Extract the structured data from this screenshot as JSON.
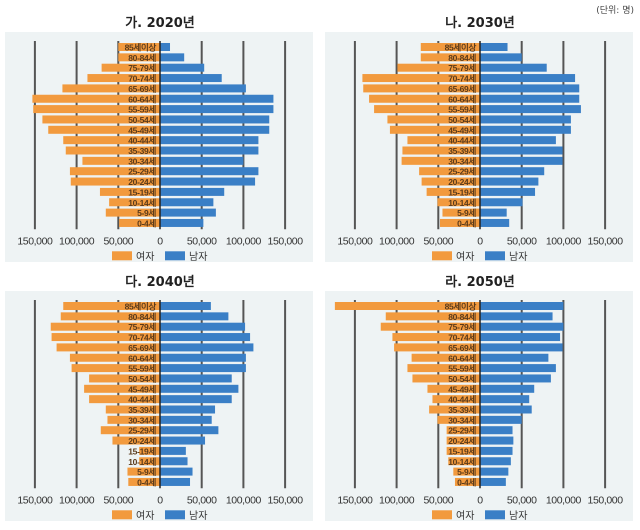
{
  "unit_label": "(단위: 명)",
  "colors": {
    "female": "#f29a3e",
    "male": "#3a7fc6",
    "panel_bg": "#eef3f4",
    "grid": "#555555"
  },
  "legend": {
    "female": "여자",
    "male": "남자"
  },
  "chart_data": [
    {
      "type": "bar",
      "orientation": "population-pyramid",
      "title": "가. 2020년",
      "categories": [
        "85세이상",
        "80-84세",
        "75-79세",
        "70-74세",
        "65-69세",
        "60-64세",
        "55-59세",
        "50-54세",
        "45-49세",
        "40-44세",
        "35-39세",
        "30-34세",
        "25-29세",
        "20-24세",
        "15-19세",
        "10-14세",
        "5-9세",
        "0-4세"
      ],
      "series": [
        {
          "name": "여자",
          "values": [
            50000,
            50000,
            70000,
            87000,
            117000,
            153000,
            152000,
            141000,
            134000,
            116000,
            113000,
            93000,
            108000,
            107000,
            72000,
            61000,
            65000,
            49000
          ]
        },
        {
          "name": "남자",
          "values": [
            12000,
            29000,
            53000,
            74000,
            103000,
            136000,
            136000,
            131000,
            131000,
            118000,
            118000,
            100000,
            118000,
            114000,
            77000,
            64000,
            67000,
            52000
          ]
        }
      ],
      "xticks": [
        "150,000",
        "100,000",
        "50,000",
        "0",
        "50,000",
        "100,000",
        "150,000"
      ],
      "xlim": [
        -150000,
        150000
      ],
      "grid": true,
      "legend_position": "bottom"
    },
    {
      "type": "bar",
      "orientation": "population-pyramid",
      "title": "나. 2030년",
      "categories": [
        "85세이상",
        "80-84세",
        "75-79세",
        "70-74세",
        "65-69세",
        "60-64세",
        "55-59세",
        "50-54세",
        "45-49세",
        "40-44세",
        "35-39세",
        "30-34세",
        "25-29세",
        "20-24세",
        "15-19세",
        "10-14세",
        "5-9세",
        "0-4세"
      ],
      "series": [
        {
          "name": "여자",
          "values": [
            71000,
            71000,
            99000,
            141000,
            140000,
            133000,
            127000,
            111000,
            108000,
            87000,
            93000,
            94000,
            73000,
            70000,
            64000,
            51000,
            45000,
            48000
          ]
        },
        {
          "name": "남자",
          "values": [
            33000,
            50000,
            80000,
            114000,
            119000,
            119000,
            121000,
            109000,
            109000,
            91000,
            99000,
            99000,
            77000,
            70000,
            66000,
            51000,
            32000,
            35000
          ]
        }
      ],
      "xticks": [
        "150,000",
        "100,000",
        "50,000",
        "0",
        "50,000",
        "100,000",
        "150,000"
      ],
      "xlim": [
        -150000,
        150000
      ],
      "grid": true,
      "legend_position": "bottom"
    },
    {
      "type": "bar",
      "orientation": "population-pyramid",
      "title": "다. 2040년",
      "categories": [
        "85세이상",
        "80-84세",
        "75-79세",
        "70-74세",
        "65-69세",
        "60-64세",
        "55-59세",
        "50-54세",
        "45-49세",
        "40-44세",
        "35-39세",
        "30-34세",
        "25-29세",
        "20-24세",
        "15-19세",
        "10-14세",
        "5-9세",
        "0-4세"
      ],
      "series": [
        {
          "name": "여자",
          "values": [
            116000,
            119000,
            131000,
            130000,
            124000,
            108000,
            106000,
            85000,
            91000,
            85000,
            65000,
            63000,
            71000,
            57000,
            25000,
            25000,
            39000,
            38000
          ]
        },
        {
          "name": "남자",
          "values": [
            61000,
            82000,
            102000,
            108000,
            112000,
            103000,
            103000,
            86000,
            94000,
            86000,
            66000,
            62000,
            70000,
            54000,
            31000,
            33000,
            39000,
            36000
          ]
        }
      ],
      "xticks": [
        "150,000",
        "100,000",
        "50,000",
        "0",
        "50,000",
        "100,000",
        "150,000"
      ],
      "xlim": [
        -150000,
        150000
      ],
      "grid": true,
      "legend_position": "bottom"
    },
    {
      "type": "bar",
      "orientation": "population-pyramid",
      "title": "라. 2050년",
      "categories": [
        "85세이상",
        "80-84세",
        "75-79세",
        "70-74세",
        "65-69세",
        "60-64세",
        "55-59세",
        "50-54세",
        "45-49세",
        "40-44세",
        "35-39세",
        "30-34세",
        "25-29세",
        "20-24세",
        "15-19세",
        "10-14세",
        "5-9세",
        "0-4세"
      ],
      "series": [
        {
          "name": "여자",
          "values": [
            174000,
            113000,
            119000,
            105000,
            103000,
            82000,
            87000,
            81000,
            63000,
            57000,
            61000,
            51000,
            40000,
            40000,
            40000,
            38000,
            32000,
            30000
          ]
        },
        {
          "name": "남자",
          "values": [
            100000,
            87000,
            100000,
            96000,
            99000,
            82000,
            91000,
            85000,
            65000,
            59000,
            62000,
            50000,
            39000,
            40000,
            39000,
            37000,
            34000,
            31000
          ]
        }
      ],
      "xticks": [
        "150,000",
        "100,000",
        "50,000",
        "0",
        "50,000",
        "100,000",
        "150,000"
      ],
      "xlim": [
        -150000,
        150000
      ],
      "grid": true,
      "legend_position": "bottom"
    }
  ]
}
